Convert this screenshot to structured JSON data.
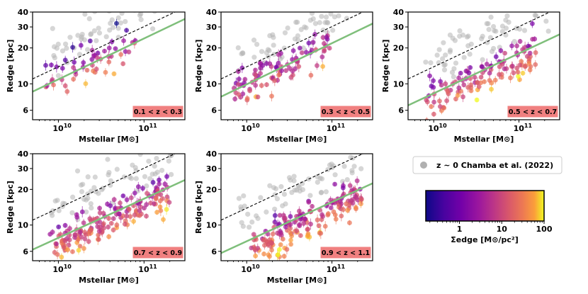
{
  "figure": {
    "legend": {
      "marker_color": "#b0b0b0",
      "label": "z ~ 0 Chamba et al. (2022)"
    },
    "colorbar": {
      "label": "Σedge [M⊙/pc²]",
      "ticks": [
        "1",
        "10",
        "100"
      ],
      "scale": "log",
      "range": [
        0.16,
        100
      ],
      "colormap": "plasma"
    }
  },
  "chart_data": [
    {
      "type": "scatter",
      "panel": "0.1 < z < 0.3",
      "xlabel": "Mstellar [M⊙]",
      "ylabel": "Redge [kpc]",
      "x_scale": "log",
      "y_scale": "log",
      "xlim": [
        5000000000.0,
        300000000000.0
      ],
      "ylim": [
        5,
        40
      ],
      "x_ticks": [
        "10^10",
        "10^11"
      ],
      "y_ticks": [
        "6",
        "10",
        "20",
        "30",
        "40"
      ],
      "fit_line": {
        "color": "#7fbf7b",
        "points": [
          [
            5000000000.0,
            8.6
          ],
          [
            300000000000.0,
            35
          ]
        ]
      },
      "z0_relation": {
        "style": "dashed",
        "points": [
          [
            5000000000.0,
            11
          ],
          [
            230000000000.0,
            40
          ]
        ]
      },
      "series": [
        {
          "seed": 11,
          "count": 60,
          "gray": true,
          "x_log_range": [
            9.9,
            11.35
          ],
          "slope": 0.4,
          "offset": 0.18
        },
        {
          "seed": 12,
          "count": 55,
          "gray": false,
          "x_log_range": [
            9.85,
            10.9
          ],
          "slope": 0.4,
          "offset": -0.05
        }
      ]
    },
    {
      "type": "scatter",
      "panel": "0.3 < z < 0.5",
      "xlabel": "Mstellar [M⊙]",
      "ylabel": "Redge [kpc]",
      "x_scale": "log",
      "y_scale": "log",
      "xlim": [
        5000000000.0,
        300000000000.0
      ],
      "ylim": [
        5,
        40
      ],
      "x_ticks": [
        "10^10",
        "10^11"
      ],
      "y_ticks": [
        "6",
        "10",
        "20",
        "30",
        "40"
      ],
      "fit_line": {
        "color": "#7fbf7b",
        "points": [
          [
            5000000000.0,
            7.8
          ],
          [
            300000000000.0,
            32
          ]
        ]
      },
      "z0_relation": {
        "style": "dashed",
        "points": [
          [
            5000000000.0,
            11
          ],
          [
            230000000000.0,
            40
          ]
        ]
      },
      "series": [
        {
          "seed": 21,
          "count": 65,
          "gray": true,
          "x_log_range": [
            9.9,
            11.35
          ],
          "slope": 0.4,
          "offset": 0.18
        },
        {
          "seed": 22,
          "count": 90,
          "gray": false,
          "x_log_range": [
            9.85,
            11.0
          ],
          "slope": 0.4,
          "offset": -0.08
        }
      ]
    },
    {
      "type": "scatter",
      "panel": "0.5 < z < 0.7",
      "xlabel": "Mstellar [M⊙]",
      "ylabel": "Redge [kpc]",
      "x_scale": "log",
      "y_scale": "log",
      "xlim": [
        5000000000.0,
        300000000000.0
      ],
      "ylim": [
        5,
        40
      ],
      "x_ticks": [
        "10^10",
        "10^11"
      ],
      "y_ticks": [
        "6",
        "10",
        "20",
        "30",
        "40"
      ],
      "fit_line": {
        "color": "#7fbf7b",
        "points": [
          [
            5000000000.0,
            6.6
          ],
          [
            300000000000.0,
            26
          ]
        ]
      },
      "z0_relation": {
        "style": "dashed",
        "points": [
          [
            5000000000.0,
            11
          ],
          [
            230000000000.0,
            40
          ]
        ]
      },
      "series": [
        {
          "seed": 31,
          "count": 65,
          "gray": true,
          "x_log_range": [
            9.9,
            11.35
          ],
          "slope": 0.4,
          "offset": 0.18
        },
        {
          "seed": 32,
          "count": 120,
          "gray": false,
          "x_log_range": [
            9.9,
            11.2
          ],
          "slope": 0.4,
          "offset": -0.12
        }
      ]
    },
    {
      "type": "scatter",
      "panel": "0.7 < z < 0.9",
      "xlabel": "Mstellar [M⊙]",
      "ylabel": "Redge [kpc]",
      "x_scale": "log",
      "y_scale": "log",
      "xlim": [
        5000000000.0,
        300000000000.0
      ],
      "ylim": [
        5,
        40
      ],
      "x_ticks": [
        "10^10",
        "10^11"
      ],
      "y_ticks": [
        "6",
        "10",
        "20",
        "30",
        "40"
      ],
      "fit_line": {
        "color": "#7fbf7b",
        "points": [
          [
            5000000000.0,
            6.2
          ],
          [
            300000000000.0,
            24
          ]
        ]
      },
      "z0_relation": {
        "style": "dashed",
        "points": [
          [
            5000000000.0,
            11
          ],
          [
            230000000000.0,
            40
          ]
        ]
      },
      "series": [
        {
          "seed": 41,
          "count": 65,
          "gray": true,
          "x_log_range": [
            9.9,
            11.35
          ],
          "slope": 0.4,
          "offset": 0.18
        },
        {
          "seed": 42,
          "count": 170,
          "gray": false,
          "x_log_range": [
            9.9,
            11.3
          ],
          "slope": 0.4,
          "offset": -0.13
        }
      ]
    },
    {
      "type": "scatter",
      "panel": "0.9 < z < 1.1",
      "xlabel": "Mstellar [M⊙]",
      "ylabel": "Redge [kpc]",
      "x_scale": "log",
      "y_scale": "log",
      "xlim": [
        5000000000.0,
        300000000000.0
      ],
      "ylim": [
        5,
        40
      ],
      "x_ticks": [
        "10^10",
        "10^11"
      ],
      "y_ticks": [
        "6",
        "10",
        "20",
        "30",
        "40"
      ],
      "fit_line": {
        "color": "#7fbf7b",
        "points": [
          [
            5000000000.0,
            5.8
          ],
          [
            300000000000.0,
            22.5
          ]
        ]
      },
      "z0_relation": {
        "style": "dashed",
        "points": [
          [
            5000000000.0,
            11
          ],
          [
            230000000000.0,
            40
          ]
        ]
      },
      "series": [
        {
          "seed": 51,
          "count": 65,
          "gray": true,
          "x_log_range": [
            9.9,
            11.35
          ],
          "slope": 0.4,
          "offset": 0.18
        },
        {
          "seed": 52,
          "count": 175,
          "gray": false,
          "x_log_range": [
            10.05,
            11.35
          ],
          "slope": 0.4,
          "offset": -0.15
        }
      ]
    }
  ]
}
